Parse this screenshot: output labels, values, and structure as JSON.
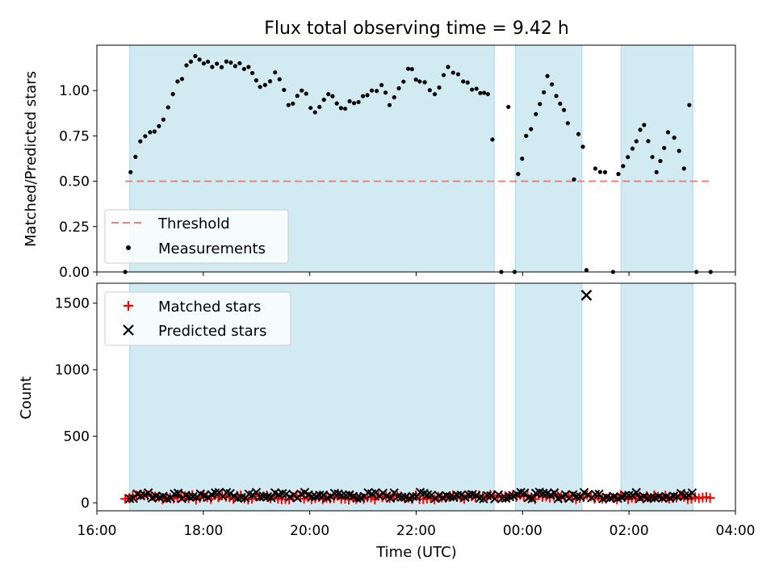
{
  "chart_data": {
    "type": "scatter",
    "title": "Flux total observing time = 9.42 h",
    "xlabel": "Time (UTC)",
    "x_unit": "hours from 16:00 UTC",
    "xlim": [
      "16:00",
      "04:00"
    ],
    "x_ticks": [
      {
        "label": "16:00",
        "value": 0
      },
      {
        "label": "18:00",
        "value": 2
      },
      {
        "label": "20:00",
        "value": 4
      },
      {
        "label": "22:00",
        "value": 6
      },
      {
        "label": "00:00",
        "value": 8
      },
      {
        "label": "02:00",
        "value": 10
      },
      {
        "label": "04:00",
        "value": 12
      }
    ],
    "colors": {
      "shade": "#add8e6",
      "threshold": "#f08080",
      "matched": "#ff0000",
      "predicted": "#000000",
      "measurement": "#000000"
    },
    "top_panel": {
      "ylabel": "Matched/Predicted stars",
      "ylim": [
        0,
        1.25
      ],
      "yticks": [
        "0.00",
        "0.25",
        "0.50",
        "0.75",
        "1.00"
      ],
      "shaded_intervals": [
        [
          "16:37",
          "23:28"
        ],
        [
          "23:52",
          "01:07"
        ],
        [
          "01:51",
          "03:12"
        ]
      ],
      "threshold": {
        "name": "Threshold",
        "value": 0.5,
        "from": "16:32",
        "to": "03:32"
      },
      "series_name": "Measurements",
      "legend_position": "lower left",
      "legend": [
        "Threshold",
        "Measurements"
      ],
      "measurements_keypoints": [
        [
          "16:32",
          0.0
        ],
        [
          "16:38",
          0.55
        ],
        [
          "16:49",
          0.72
        ],
        [
          "17:00",
          0.77
        ],
        [
          "17:15",
          0.84
        ],
        [
          "17:31",
          1.05
        ],
        [
          "17:51",
          1.19
        ],
        [
          "18:10",
          1.13
        ],
        [
          "18:26",
          1.16
        ],
        [
          "18:51",
          1.13
        ],
        [
          "19:04",
          1.02
        ],
        [
          "19:21",
          1.1
        ],
        [
          "19:36",
          0.92
        ],
        [
          "19:51",
          1.0
        ],
        [
          "20:06",
          0.88
        ],
        [
          "20:21",
          0.98
        ],
        [
          "20:40",
          0.9
        ],
        [
          "21:10",
          1.0
        ],
        [
          "21:21",
          1.03
        ],
        [
          "21:30",
          0.92
        ],
        [
          "21:51",
          1.12
        ],
        [
          "22:04",
          1.05
        ],
        [
          "22:21",
          0.98
        ],
        [
          "22:36",
          1.13
        ],
        [
          "22:53",
          1.05
        ],
        [
          "23:08",
          1.01
        ],
        [
          "23:21",
          0.98
        ],
        [
          "23:26",
          0.73
        ],
        [
          "23:36",
          0.0
        ],
        [
          "23:44",
          0.91
        ],
        [
          "23:51",
          0.0
        ],
        [
          "23:55",
          0.54
        ],
        [
          "00:04",
          0.75
        ],
        [
          "00:15",
          0.87
        ],
        [
          "00:24",
          0.99
        ],
        [
          "00:28",
          1.08
        ],
        [
          "00:38",
          0.97
        ],
        [
          "00:51",
          0.82
        ],
        [
          "00:58",
          0.51
        ],
        [
          "01:03",
          0.76
        ],
        [
          "01:08",
          0.69
        ],
        [
          "01:12",
          0.01
        ],
        [
          "01:22",
          0.57
        ],
        [
          "01:33",
          0.55
        ],
        [
          "01:42",
          0.0
        ],
        [
          "01:48",
          0.54
        ],
        [
          "02:04",
          0.68
        ],
        [
          "02:17",
          0.81
        ],
        [
          "02:31",
          0.55
        ],
        [
          "02:44",
          0.77
        ],
        [
          "02:51",
          0.74
        ],
        [
          "03:02",
          0.57
        ],
        [
          "03:08",
          0.92
        ],
        [
          "03:16",
          0.0
        ],
        [
          "03:32",
          0.0
        ]
      ]
    },
    "bottom_panel": {
      "ylabel": "Count",
      "ylim": [
        -60,
        1650
      ],
      "yticks": [
        "0",
        "500",
        "1000",
        "1500"
      ],
      "shaded_intervals": [
        [
          "16:37",
          "23:28"
        ],
        [
          "23:52",
          "01:07"
        ],
        [
          "01:51",
          "03:12"
        ]
      ],
      "legend_position": "upper left",
      "legend": [
        "Matched stars",
        "Predicted stars"
      ],
      "series": [
        {
          "name": "Matched stars",
          "marker": "+",
          "color": "#ff0000",
          "baseline_range": [
            25,
            60
          ],
          "from": "16:32",
          "to": "03:32"
        },
        {
          "name": "Predicted stars",
          "marker": "x",
          "color": "#000000",
          "baseline_range": [
            30,
            80
          ],
          "from": "16:37",
          "to": "03:12",
          "outlier": [
            "01:12",
            1560
          ]
        }
      ]
    }
  }
}
